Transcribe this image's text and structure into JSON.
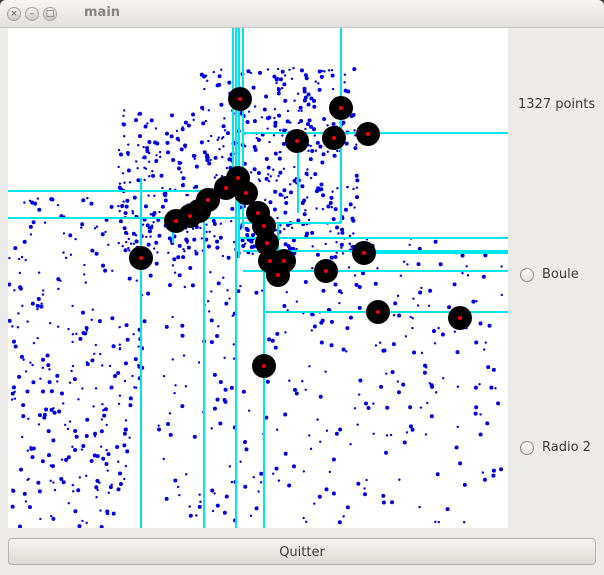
{
  "window": {
    "title": "main"
  },
  "side": {
    "points_label": "1327 points",
    "radio1": "Boule",
    "radio2": "Radio 2"
  },
  "buttons": {
    "quit": "Quitter"
  },
  "colors": {
    "dot": "#0000e6",
    "line": "#00e6ec",
    "ball": "#000000",
    "center": "#ff0000"
  },
  "icons": [
    "close-icon",
    "minimize-icon",
    "maximize-icon"
  ]
}
